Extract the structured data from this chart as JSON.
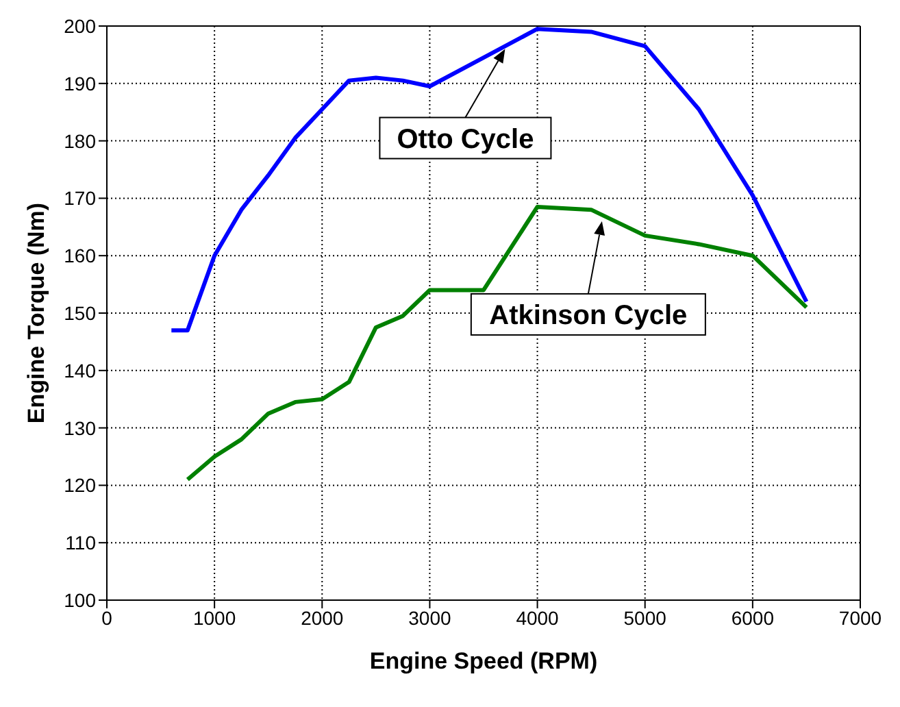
{
  "chart_data": {
    "type": "line",
    "xlabel": "Engine Speed (RPM)",
    "ylabel": "Engine Torque (Nm)",
    "xlim": [
      0,
      7000
    ],
    "xticks": [
      0,
      1000,
      2000,
      3000,
      4000,
      5000,
      6000,
      7000
    ],
    "ylim": [
      100,
      200
    ],
    "yticks": [
      100,
      110,
      120,
      130,
      140,
      150,
      160,
      170,
      180,
      190,
      200
    ],
    "grid": true,
    "legend": false,
    "marker": "none",
    "line_style": "solid",
    "series": [
      {
        "color": "#0000ff",
        "x": [
          600,
          750,
          1000,
          1250,
          1500,
          1750,
          2000,
          2250,
          2500,
          2750,
          3000,
          3500,
          4000,
          4500,
          5000,
          5500,
          6000,
          6500
        ],
        "values": [
          147,
          147,
          160,
          168,
          174,
          180.5,
          185.5,
          190.5,
          191,
          190.5,
          189.5,
          194.5,
          199.5,
          199,
          196.5,
          185.5,
          170.5,
          152
        ]
      },
      {
        "color": "#008000",
        "x": [
          750,
          1000,
          1250,
          1500,
          1750,
          2000,
          2250,
          2500,
          2750,
          3000,
          3500,
          4000,
          4500,
          5000,
          5500,
          6000,
          6500
        ],
        "values": [
          121,
          125,
          128,
          132.5,
          134.5,
          135,
          138,
          147.5,
          149.5,
          154,
          154,
          168.5,
          168,
          163.5,
          162,
          160,
          151
        ]
      }
    ],
    "annotations": [
      {
        "text": "Otto Cycle",
        "x": 3700,
        "y": 196
      },
      {
        "text": "Atkinson Cycle",
        "x": 4600,
        "y": 166
      }
    ]
  }
}
